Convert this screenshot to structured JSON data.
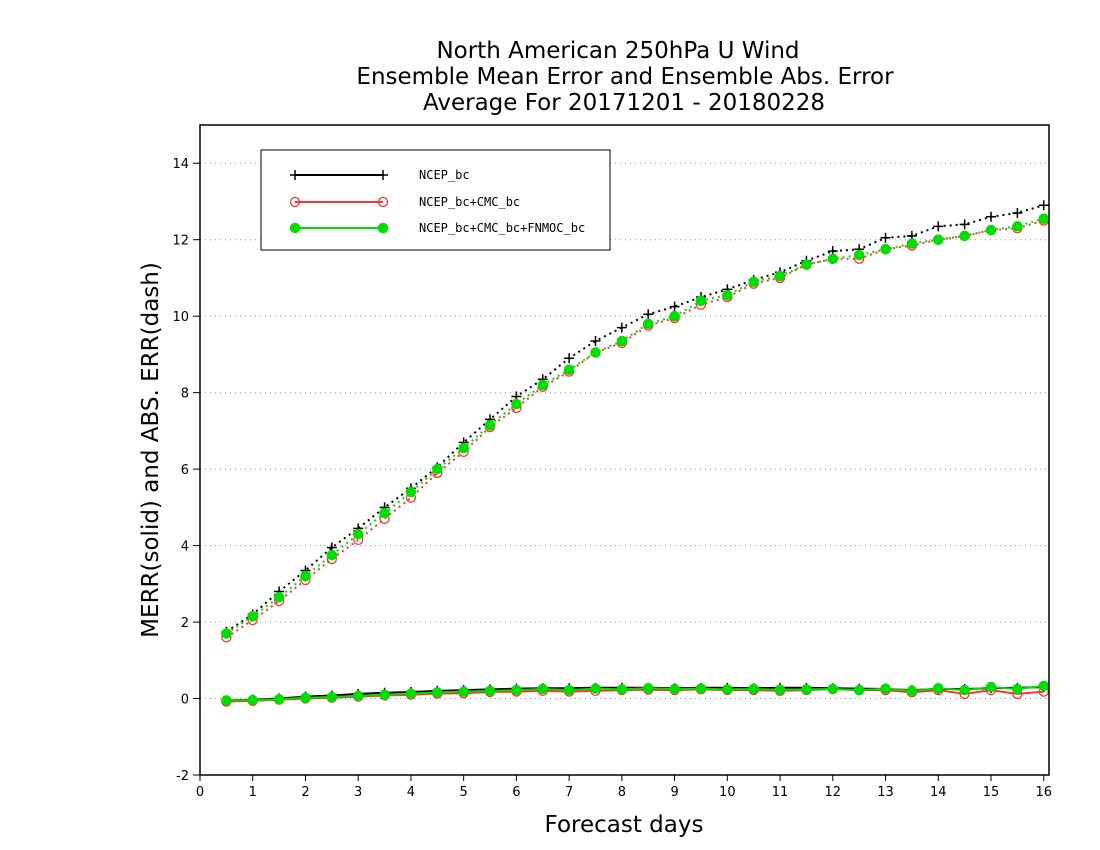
{
  "chart_data": {
    "type": "line",
    "title": [
      "North American 250hPa U Wind",
      "Ensemble Mean Error and Ensemble Abs. Error",
      "Average For 20171201 - 20180228"
    ],
    "xlabel": "Forecast days",
    "ylabel": "MERR(solid) and ABS. ERR(dash)",
    "xlim": [
      0,
      16.1
    ],
    "ylim": [
      -2,
      15
    ],
    "xticks": [
      0,
      1,
      2,
      3,
      4,
      5,
      6,
      7,
      8,
      9,
      10,
      11,
      12,
      13,
      14,
      15,
      16
    ],
    "xtick_labels": [
      "0",
      "1",
      "2",
      "3",
      "4",
      "5",
      "6",
      "7",
      "8",
      "9",
      "10",
      "11",
      "12",
      "13",
      "14",
      "15",
      "16"
    ],
    "yticks": [
      -2,
      0,
      2,
      4,
      6,
      8,
      10,
      12,
      14
    ],
    "ytick_labels": [
      "-2",
      "0",
      "2",
      "4",
      "6",
      "8",
      "10",
      "12",
      "14"
    ],
    "grid": "horizontal dotted",
    "legend_position": "top-left",
    "x": [
      0.5,
      1,
      1.5,
      2,
      2.5,
      3,
      3.5,
      4,
      4.5,
      5,
      5.5,
      6,
      6.5,
      7,
      7.5,
      8,
      8.5,
      9,
      9.5,
      10,
      10.5,
      11,
      11.5,
      12,
      12.5,
      13,
      13.5,
      14,
      14.5,
      15,
      15.5,
      16
    ],
    "series": [
      {
        "name": "NCEP_bc",
        "color": "#000000",
        "marker": "plus",
        "mean_error": [
          -0.05,
          -0.03,
          0.0,
          0.05,
          0.08,
          0.12,
          0.15,
          0.17,
          0.2,
          0.22,
          0.24,
          0.26,
          0.27,
          0.27,
          0.28,
          0.28,
          0.28,
          0.27,
          0.28,
          0.28,
          0.27,
          0.28,
          0.28,
          0.27,
          0.26,
          0.25,
          0.22,
          0.25,
          0.25,
          0.27,
          0.28,
          0.3
        ],
        "abs_error": [
          1.75,
          2.2,
          2.8,
          3.35,
          3.95,
          4.45,
          5.0,
          5.5,
          6.05,
          6.7,
          7.3,
          7.9,
          8.35,
          8.9,
          9.35,
          9.7,
          10.05,
          10.25,
          10.5,
          10.7,
          10.95,
          11.15,
          11.45,
          11.7,
          11.75,
          12.05,
          12.1,
          12.35,
          12.4,
          12.6,
          12.7,
          12.9
        ]
      },
      {
        "name": "NCEP_bc+CMC_bc",
        "color": "#ff3333",
        "marker": "open-circle",
        "mean_error": [
          -0.08,
          -0.06,
          -0.03,
          0.0,
          0.02,
          0.05,
          0.08,
          0.1,
          0.13,
          0.14,
          0.17,
          0.18,
          0.2,
          0.18,
          0.2,
          0.22,
          0.23,
          0.22,
          0.24,
          0.22,
          0.22,
          0.2,
          0.22,
          0.25,
          0.22,
          0.22,
          0.16,
          0.22,
          0.12,
          0.22,
          0.12,
          0.18
        ],
        "abs_error": [
          1.6,
          2.05,
          2.55,
          3.1,
          3.65,
          4.15,
          4.7,
          5.25,
          5.9,
          6.45,
          7.1,
          7.6,
          8.15,
          8.55,
          9.05,
          9.3,
          9.75,
          9.95,
          10.3,
          10.5,
          10.85,
          11.0,
          11.35,
          11.5,
          11.5,
          11.75,
          11.85,
          12.0,
          12.1,
          12.25,
          12.3,
          12.5
        ]
      },
      {
        "name": "NCEP_bc+CMC_bc+FNMOC_bc",
        "color": "#00dd00",
        "marker": "filled-circle",
        "mean_error": [
          -0.05,
          -0.04,
          -0.02,
          0.02,
          0.04,
          0.07,
          0.1,
          0.13,
          0.16,
          0.18,
          0.2,
          0.22,
          0.25,
          0.22,
          0.26,
          0.24,
          0.27,
          0.25,
          0.26,
          0.24,
          0.25,
          0.23,
          0.24,
          0.25,
          0.22,
          0.26,
          0.2,
          0.27,
          0.22,
          0.3,
          0.25,
          0.33
        ],
        "abs_error": [
          1.7,
          2.15,
          2.65,
          3.2,
          3.75,
          4.3,
          4.85,
          5.4,
          6.0,
          6.55,
          7.15,
          7.7,
          8.2,
          8.6,
          9.05,
          9.35,
          9.8,
          10.0,
          10.4,
          10.55,
          10.9,
          11.05,
          11.35,
          11.5,
          11.6,
          11.75,
          11.9,
          12.0,
          12.1,
          12.25,
          12.35,
          12.55
        ]
      }
    ]
  }
}
